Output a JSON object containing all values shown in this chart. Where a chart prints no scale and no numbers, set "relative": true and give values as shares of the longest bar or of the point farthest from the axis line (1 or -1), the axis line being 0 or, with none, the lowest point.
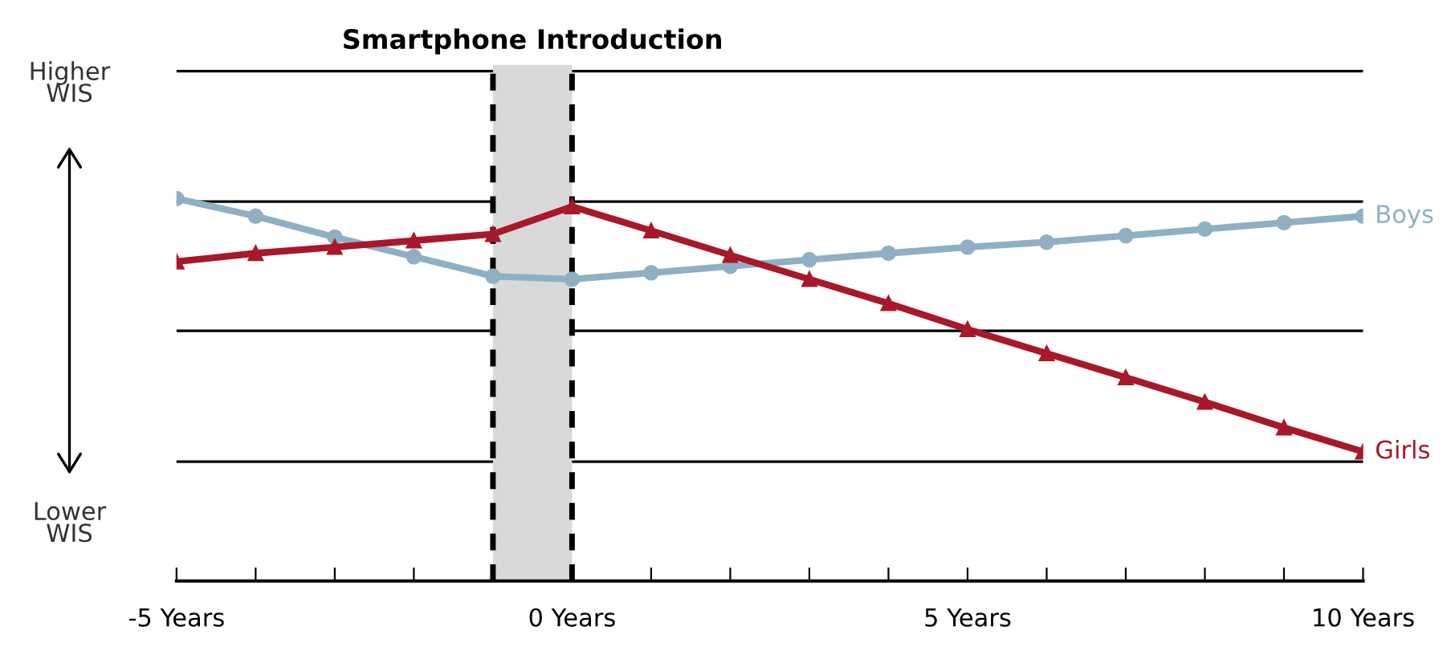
{
  "chart_data": {
    "type": "line",
    "relative": true,
    "x": [
      -5,
      -4,
      -3,
      -2,
      -1,
      0,
      1,
      2,
      3,
      4,
      5,
      6,
      7,
      8,
      9,
      10
    ],
    "series": [
      {
        "name": "Boys",
        "color": "#8fb0c4",
        "marker": "circle",
        "values": [
          1,
          0.954,
          0.899,
          0.848,
          0.797,
          0.789,
          0.806,
          0.823,
          0.84,
          0.857,
          0.873,
          0.886,
          0.903,
          0.92,
          0.937,
          0.954
        ]
      },
      {
        "name": "Girls",
        "color": "#a8182a",
        "marker": "triangle",
        "values": [
          0.835,
          0.857,
          0.873,
          0.89,
          0.907,
          0.979,
          0.916,
          0.852,
          0.789,
          0.726,
          0.658,
          0.595,
          0.532,
          0.468,
          0.401,
          0.338
        ]
      }
    ],
    "xlim": [
      -5,
      10
    ],
    "xticks": [
      {
        "value": -5,
        "label": "-5 Years"
      },
      {
        "value": -4,
        "label": null
      },
      {
        "value": -3,
        "label": null
      },
      {
        "value": -2,
        "label": null
      },
      {
        "value": -1,
        "label": null
      },
      {
        "value": 0,
        "label": "0 Years"
      },
      {
        "value": 1,
        "label": null
      },
      {
        "value": 2,
        "label": null
      },
      {
        "value": 3,
        "label": null
      },
      {
        "value": 4,
        "label": null
      },
      {
        "value": 5,
        "label": "5 Years"
      },
      {
        "value": 6,
        "label": null
      },
      {
        "value": 7,
        "label": null
      },
      {
        "value": 8,
        "label": null
      },
      {
        "value": 9,
        "label": null
      },
      {
        "value": 10,
        "label": "10 Years"
      }
    ],
    "ref_lines": [
      {
        "axis": "y",
        "value": 1.333,
        "color": "#000000"
      },
      {
        "axis": "y",
        "value": 0.992,
        "color": "#000000"
      },
      {
        "axis": "y",
        "value": 0.654,
        "color": "#000000"
      },
      {
        "axis": "y",
        "value": 0.312,
        "color": "#000000"
      },
      {
        "axis": "x",
        "value": -1,
        "color": "#000000",
        "line_style": "dashed"
      },
      {
        "axis": "x",
        "value": 0,
        "color": "#000000",
        "line_style": "dashed"
      }
    ],
    "bands": [
      {
        "axis": "x",
        "from": -1,
        "to": 0,
        "label": "Smartphone Introduction",
        "color": "#d9d9d9"
      }
    ],
    "annotations": [
      "Higher\nWIS",
      "Lower\nWIS"
    ],
    "legend": false
  }
}
